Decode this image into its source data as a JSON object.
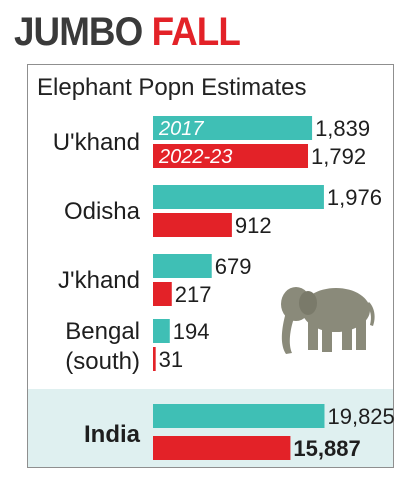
{
  "header": {
    "title_part1": "JUMBO",
    "title_part2": "FALL"
  },
  "colors": {
    "series_2017": "#3fbfb5",
    "series_2022": "#e32228",
    "title_dark": "#3a3a3a",
    "title_red": "#e32228",
    "total_band": "#dff0f0"
  },
  "icon": "elephant-icon",
  "chart_data": {
    "type": "bar",
    "orientation": "horizontal",
    "title": "Elephant Popn Estimates",
    "categories": [
      [
        "U'khand"
      ],
      [
        "Odisha"
      ],
      [
        "J'khand"
      ],
      [
        "Bengal",
        "(south)"
      ]
    ],
    "series": [
      {
        "name": "2017",
        "values": [
          1839,
          1976,
          679,
          194
        ]
      },
      {
        "name": "2022-23",
        "values": [
          1792,
          912,
          217,
          31
        ]
      }
    ],
    "value_labels": [
      [
        "1,839",
        "1,976",
        "679",
        "194"
      ],
      [
        "1,792",
        "912",
        "217",
        "31"
      ]
    ],
    "xlim": [
      0,
      2000
    ],
    "total": {
      "label": "India",
      "values": [
        19825,
        15887
      ],
      "value_labels": [
        "19,825",
        "15,887"
      ],
      "xlim": [
        0,
        20000
      ]
    },
    "legend": "inside-first-bars",
    "grid": false
  }
}
